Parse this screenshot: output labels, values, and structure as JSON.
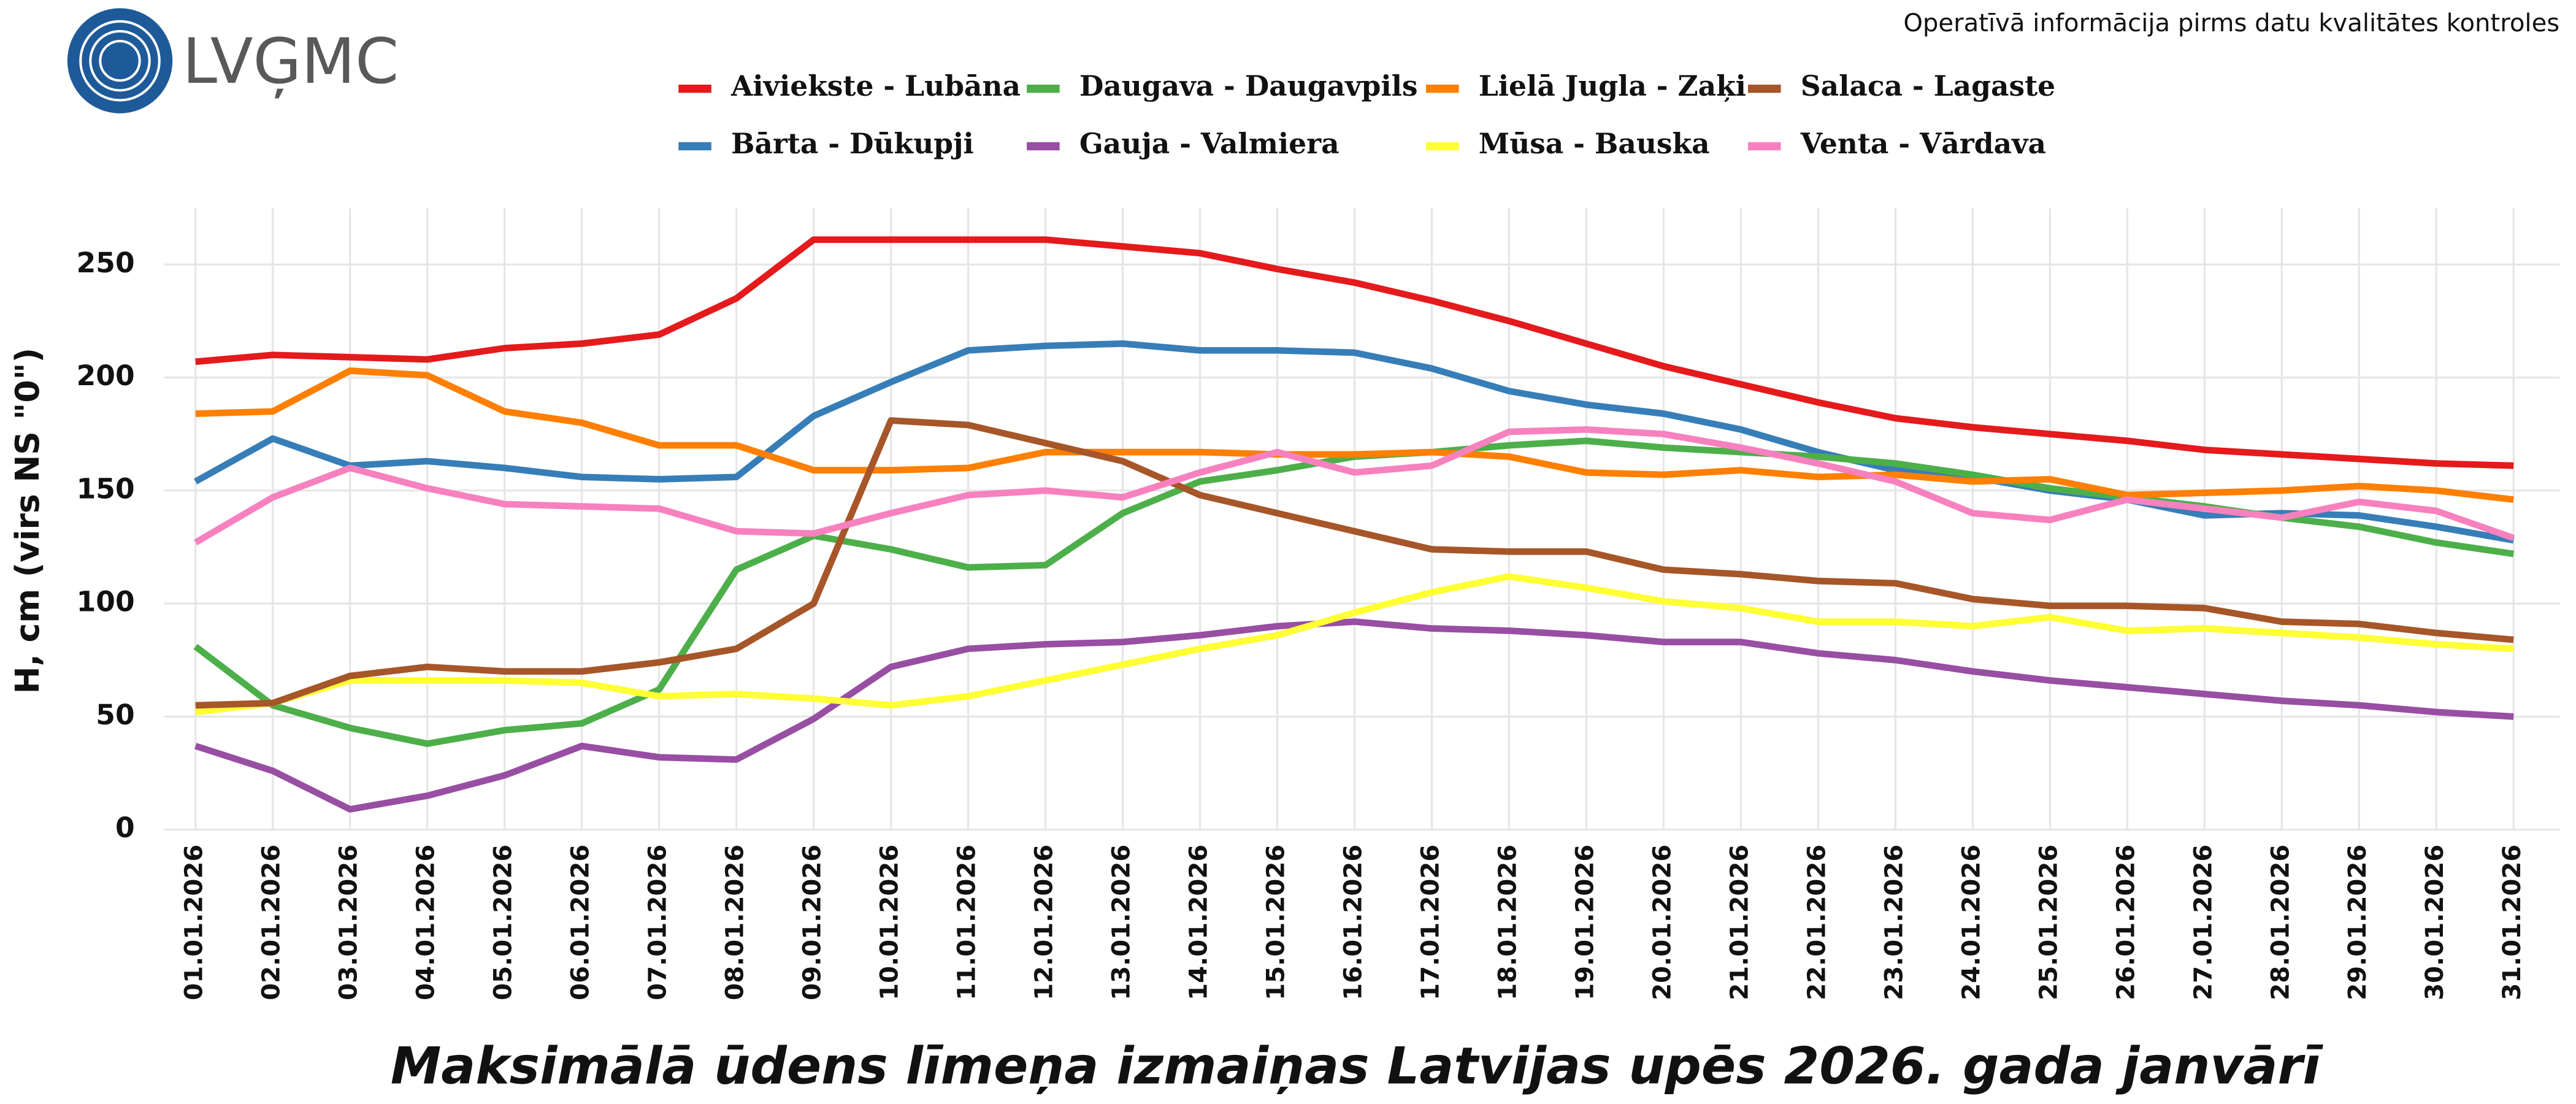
{
  "header": {
    "logo": "LVĢMC",
    "note": "Operatīvā informācija pirms datu kvalitātes kontroles"
  },
  "chart_data": {
    "type": "line",
    "title": "Maksimālā ūdens līmeņa izmaiņas Latvijas upēs 2026. gada janvārī",
    "y_label": "H, cm (virs NS \"0\")",
    "categories": [
      "01.01.2026",
      "02.01.2026",
      "03.01.2026",
      "04.01.2026",
      "05.01.2026",
      "06.01.2026",
      "07.01.2026",
      "08.01.2026",
      "09.01.2026",
      "10.01.2026",
      "11.01.2026",
      "12.01.2026",
      "13.01.2026",
      "14.01.2026",
      "15.01.2026",
      "16.01.2026",
      "17.01.2026",
      "18.01.2026",
      "19.01.2026",
      "20.01.2026",
      "21.01.2026",
      "22.01.2026",
      "23.01.2026",
      "24.01.2026",
      "25.01.2026",
      "26.01.2026",
      "27.01.2026",
      "28.01.2026",
      "29.01.2026",
      "30.01.2026",
      "31.01.2026"
    ],
    "series": [
      {
        "name": "Aiviekste - Lubāna",
        "color": "#e41a1c",
        "values": [
          207,
          210,
          209,
          208,
          213,
          215,
          219,
          235,
          261,
          261,
          261,
          261,
          258,
          255,
          248,
          242,
          234,
          225,
          215,
          205,
          197,
          189,
          182,
          178,
          175,
          172,
          168,
          166,
          164,
          162,
          161
        ]
      },
      {
        "name": "Bārta - Dūkupji",
        "color": "#377eb8",
        "values": [
          154,
          173,
          161,
          163,
          160,
          156,
          155,
          156,
          183,
          198,
          212,
          214,
          215,
          212,
          212,
          211,
          204,
          194,
          188,
          184,
          177,
          167,
          159,
          156,
          150,
          146,
          139,
          140,
          139,
          134,
          128
        ]
      },
      {
        "name": "Daugava - Daugavpils",
        "color": "#4daf4a",
        "values": [
          81,
          55,
          45,
          38,
          44,
          47,
          62,
          115,
          130,
          124,
          116,
          117,
          140,
          154,
          159,
          165,
          167,
          170,
          172,
          169,
          167,
          165,
          162,
          157,
          151,
          147,
          143,
          138,
          134,
          127,
          122
        ]
      },
      {
        "name": "Gauja - Valmiera",
        "color": "#984ea3",
        "values": [
          37,
          26,
          9,
          15,
          24,
          37,
          32,
          31,
          49,
          72,
          80,
          82,
          83,
          86,
          90,
          92,
          89,
          88,
          86,
          83,
          83,
          78,
          75,
          70,
          66,
          63,
          60,
          57,
          55,
          52,
          50
        ]
      },
      {
        "name": "Lielā Jugla - Zaķi",
        "color": "#ff7f00",
        "values": [
          184,
          185,
          203,
          201,
          185,
          180,
          170,
          170,
          159,
          159,
          160,
          167,
          167,
          167,
          166,
          166,
          167,
          165,
          158,
          157,
          159,
          156,
          157,
          154,
          155,
          148,
          149,
          150,
          152,
          150,
          146
        ]
      },
      {
        "name": "Mūsa - Bauska",
        "color": "#ffff33",
        "values": [
          52,
          56,
          66,
          66,
          66,
          65,
          59,
          60,
          58,
          55,
          59,
          66,
          73,
          80,
          86,
          96,
          105,
          112,
          107,
          101,
          98,
          92,
          92,
          90,
          94,
          88,
          89,
          87,
          85,
          82,
          80
        ]
      },
      {
        "name": "Salaca - Lagaste",
        "color": "#a65628",
        "values": [
          55,
          56,
          68,
          72,
          70,
          70,
          74,
          80,
          100,
          181,
          179,
          171,
          163,
          148,
          140,
          132,
          124,
          123,
          123,
          115,
          113,
          110,
          109,
          102,
          99,
          99,
          98,
          92,
          91,
          87,
          84
        ]
      },
      {
        "name": "Venta - Vārdava",
        "color": "#f781bf",
        "values": [
          127,
          147,
          160,
          151,
          144,
          143,
          142,
          132,
          131,
          140,
          148,
          150,
          147,
          158,
          167,
          158,
          161,
          176,
          177,
          175,
          169,
          162,
          154,
          140,
          137,
          146,
          142,
          138,
          145,
          141,
          129
        ]
      }
    ],
    "ylim": [
      0,
      275
    ],
    "yticks": [
      0,
      50,
      100,
      150,
      200,
      250
    ],
    "grid": true
  }
}
